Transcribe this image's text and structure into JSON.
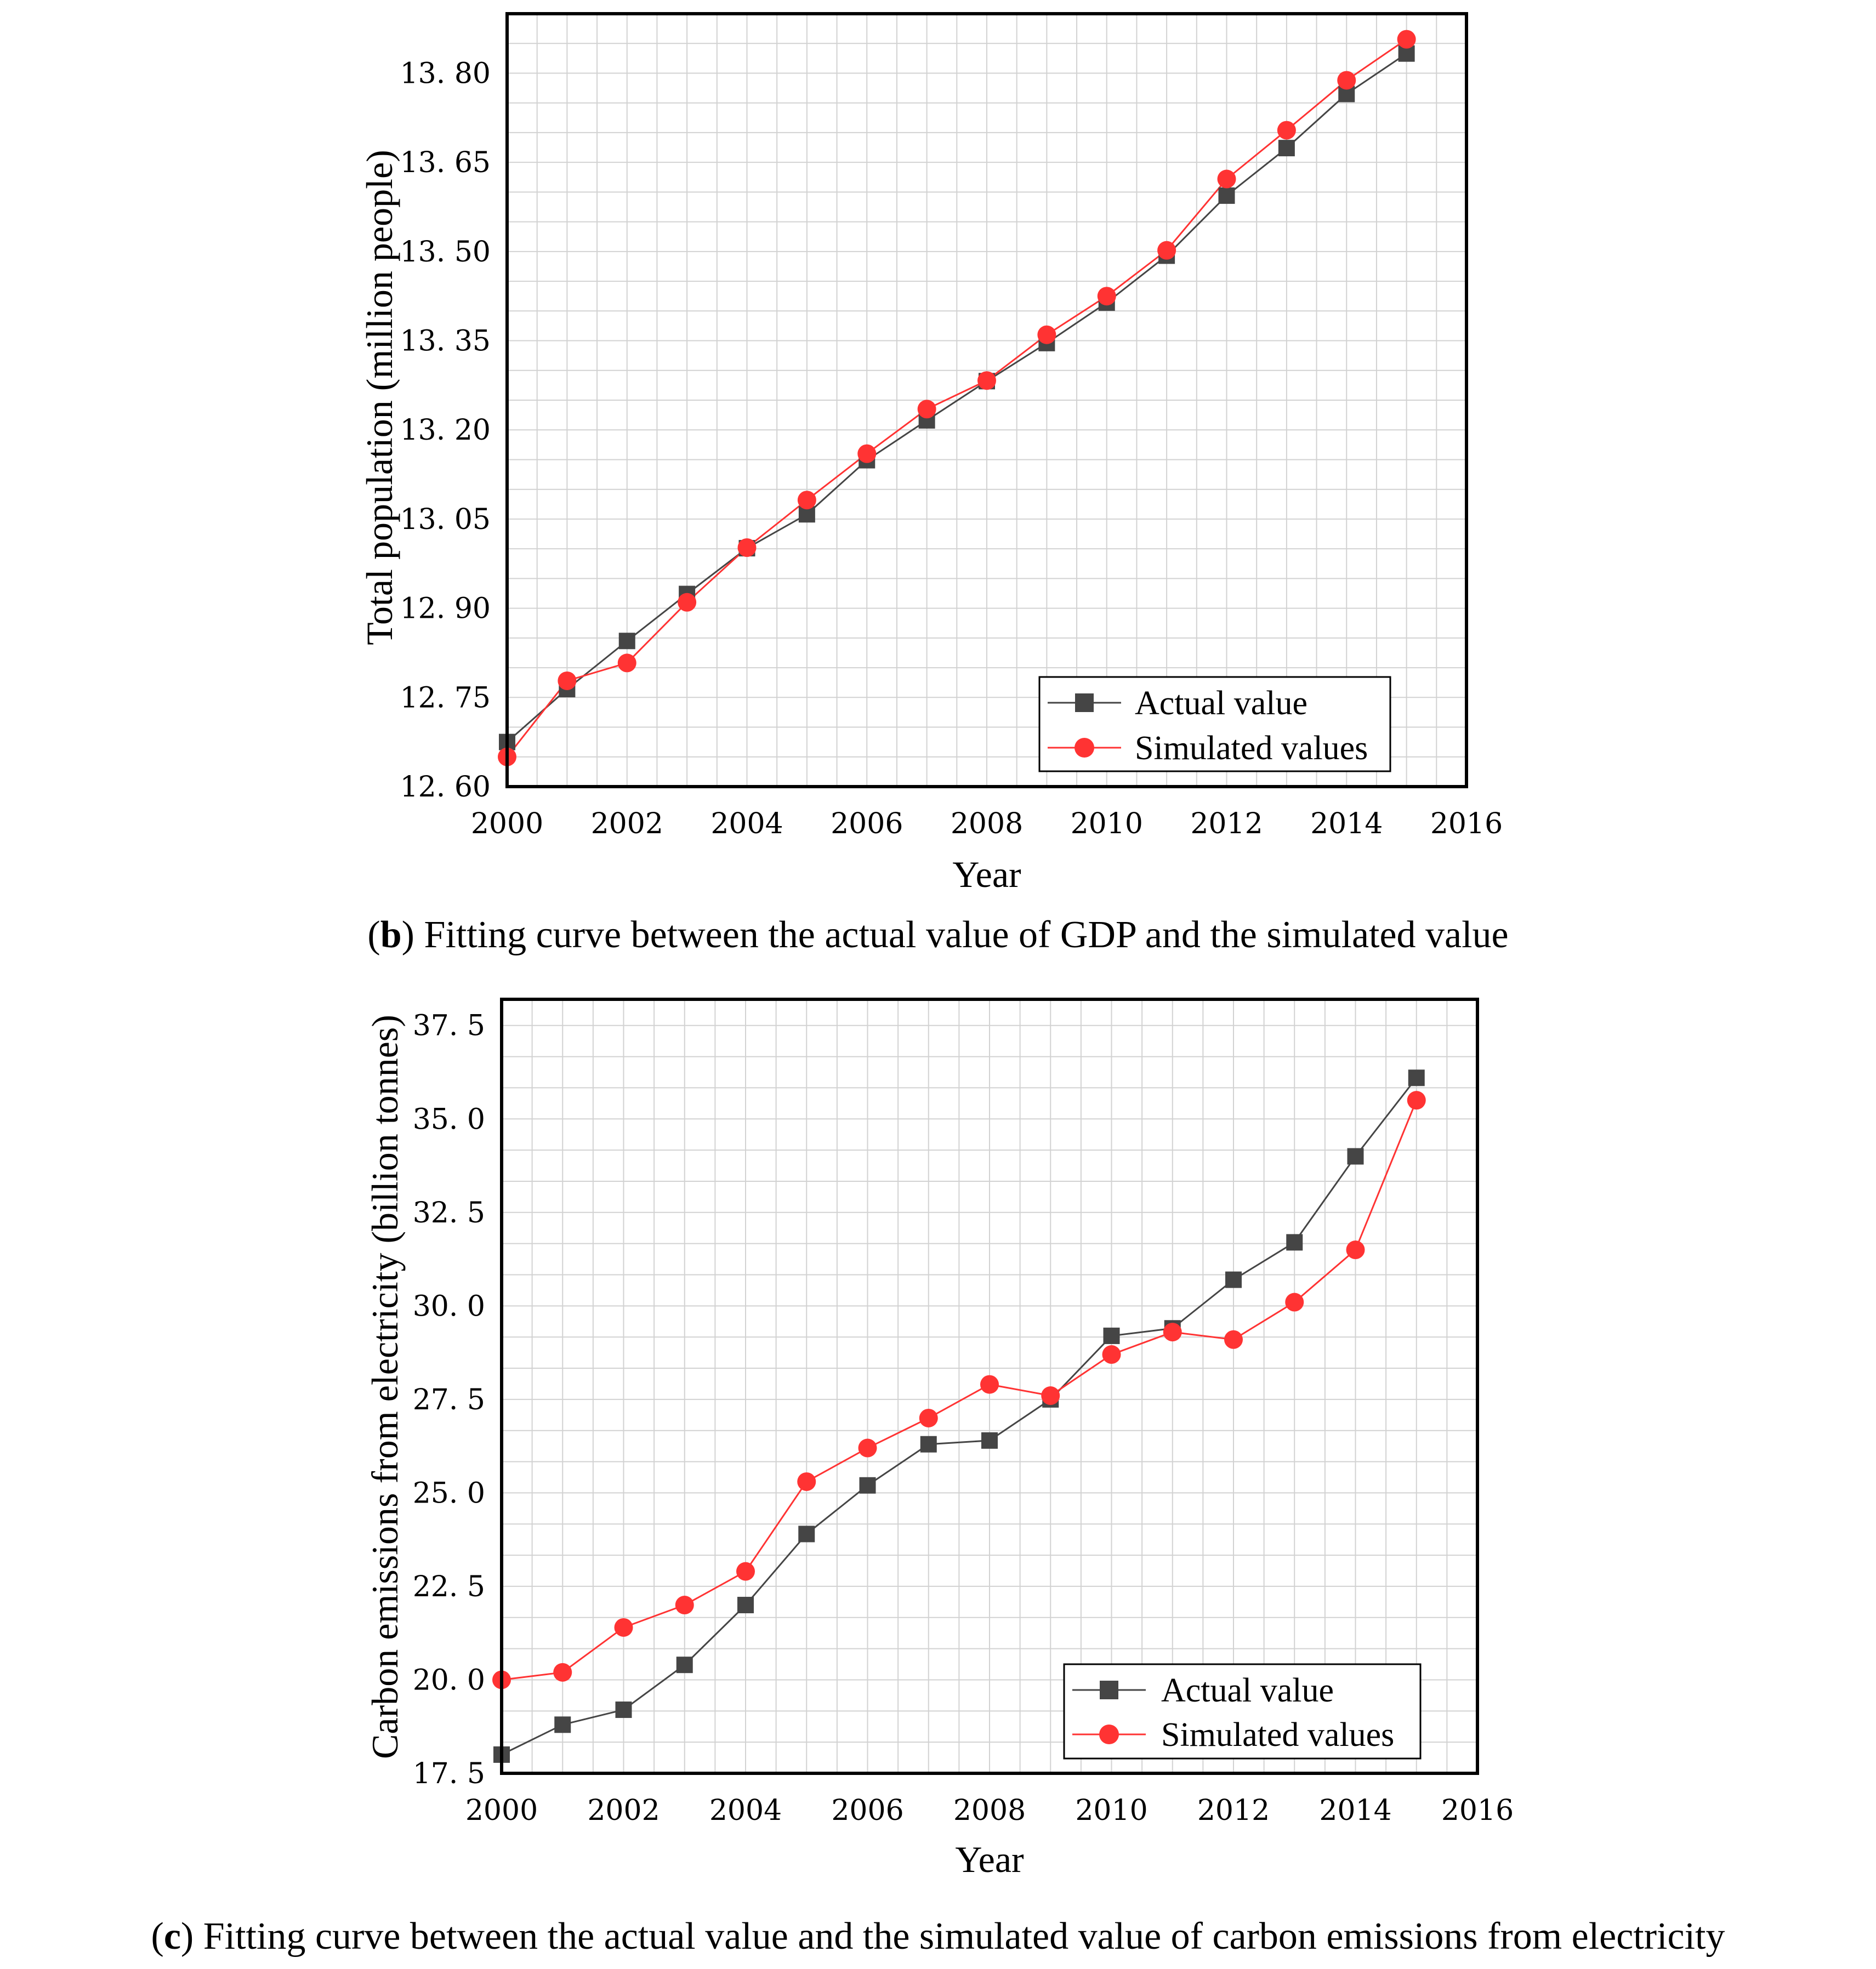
{
  "colors": {
    "actual": "#454545",
    "simulated": "#ff3333",
    "grid": "#d2d2d2",
    "axis": "#000000"
  },
  "chart_data": [
    {
      "type": "line",
      "title": "",
      "xlabel": "Year",
      "ylabel": "Total population (million people)",
      "xlim": [
        2000,
        2016
      ],
      "ylim": [
        12.6,
        13.9
      ],
      "x_ticks": [
        2000,
        2002,
        2004,
        2006,
        2008,
        2010,
        2012,
        2014,
        2016
      ],
      "x_tick_labels": [
        "2000",
        "2002",
        "2004",
        "2006",
        "2008",
        "2010",
        "2012",
        "2014",
        "2016"
      ],
      "y_ticks": [
        12.6,
        12.75,
        12.9,
        13.05,
        13.2,
        13.35,
        13.5,
        13.65,
        13.8
      ],
      "y_tick_labels": [
        "12. 60",
        "12. 75",
        "12. 90",
        "13. 05",
        "13. 20",
        "13. 35",
        "13. 50",
        "13. 65",
        "13. 80"
      ],
      "grid": true,
      "legend_position": "bottom-right",
      "x": [
        2000,
        2001,
        2002,
        2003,
        2004,
        2005,
        2006,
        2007,
        2008,
        2009,
        2010,
        2011,
        2012,
        2013,
        2014,
        2015
      ],
      "series": [
        {
          "name": "Actual value",
          "marker": "square",
          "values": [
            12.675,
            12.764,
            12.845,
            12.924,
            13.001,
            13.058,
            13.149,
            13.216,
            13.282,
            13.346,
            13.414,
            13.493,
            13.594,
            13.674,
            13.765,
            13.833
          ]
        },
        {
          "name": "Simulated values",
          "marker": "circle",
          "values": [
            12.65,
            12.778,
            12.808,
            12.91,
            13.002,
            13.082,
            13.16,
            13.235,
            13.283,
            13.36,
            13.425,
            13.502,
            13.622,
            13.704,
            13.788,
            13.857
          ]
        }
      ],
      "caption_letter": "b",
      "caption": "Fitting curve between the actual value of GDP and the simulated value"
    },
    {
      "type": "line",
      "title": "",
      "xlabel": "Year",
      "ylabel": "Carbon emissions from electricity (billion tonnes)",
      "xlim": [
        2000,
        2016
      ],
      "ylim": [
        17.5,
        38.2
      ],
      "x_ticks": [
        2000,
        2002,
        2004,
        2006,
        2008,
        2010,
        2012,
        2014,
        2016
      ],
      "x_tick_labels": [
        "2000",
        "2002",
        "2004",
        "2006",
        "2008",
        "2010",
        "2012",
        "2014",
        "2016"
      ],
      "y_ticks": [
        17.5,
        20.0,
        22.5,
        25.0,
        27.5,
        30.0,
        32.5,
        35.0,
        37.5
      ],
      "y_tick_labels": [
        "17. 5",
        "20. 0",
        "22. 5",
        "25. 0",
        "27. 5",
        "30. 0",
        "32. 5",
        "35. 0",
        "37. 5"
      ],
      "grid": true,
      "legend_position": "bottom-right",
      "x": [
        2000,
        2001,
        2002,
        2003,
        2004,
        2005,
        2006,
        2007,
        2008,
        2009,
        2010,
        2011,
        2012,
        2013,
        2014,
        2015
      ],
      "series": [
        {
          "name": "Actual value",
          "marker": "square",
          "values": [
            18.0,
            18.8,
            19.2,
            20.4,
            22.0,
            23.9,
            25.2,
            26.3,
            26.4,
            27.5,
            29.2,
            29.4,
            30.7,
            31.7,
            34.0,
            36.1
          ]
        },
        {
          "name": "Simulated values",
          "marker": "circle",
          "values": [
            20.0,
            20.2,
            21.4,
            22.0,
            22.9,
            25.3,
            26.2,
            27.0,
            27.9,
            27.6,
            28.7,
            29.3,
            29.1,
            30.1,
            31.5,
            35.5
          ]
        }
      ],
      "caption_letter": "c",
      "caption": "Fitting curve between the actual value and the simulated value of carbon emissions from electricity"
    }
  ]
}
